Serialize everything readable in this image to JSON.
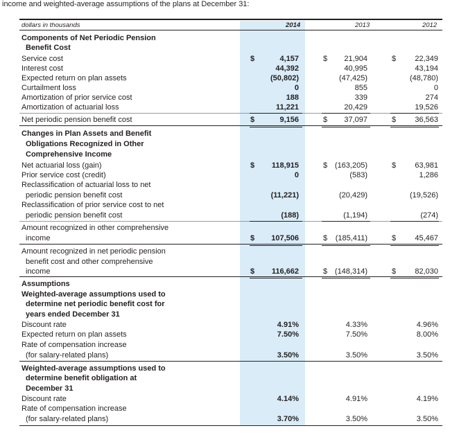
{
  "intro": "income and weighted-average assumptions of the plans at December 31:",
  "header": {
    "units": "dollars in thousands",
    "col2014": "2014",
    "col2013": "2013",
    "col2012": "2012"
  },
  "sections": {
    "npp_title_1": "Components of Net Periodic Pension",
    "npp_title_2": "Benefit Cost",
    "changes_title_1": "Changes in Plan Assets and Benefit",
    "changes_title_2": "Obligations Recognized in Other",
    "changes_title_3": "Comprehensive Income",
    "assumptions": "Assumptions",
    "wa1_1": "Weighted-average assumptions used to",
    "wa1_2": "determine net periodic benefit cost for",
    "wa1_3": "years ended December 31",
    "wa2_1": "Weighted-average assumptions used to",
    "wa2_2": "determine benefit obligation at",
    "wa2_3": "December 31"
  },
  "currency": "$",
  "rows": {
    "service_cost": {
      "label": "Service cost",
      "v2014": "4,157",
      "v2013": "21,904",
      "v2012": "22,349"
    },
    "interest_cost": {
      "label": "Interest cost",
      "v2014": "44,392",
      "v2013": "40,995",
      "v2012": "43,194"
    },
    "expected_return": {
      "label": "Expected return on plan assets",
      "v2014": "(50,802)",
      "v2013": "(47,425)",
      "v2012": "(48,780)"
    },
    "curtailment": {
      "label": "Curtailment loss",
      "v2014": "0",
      "v2013": "855",
      "v2012": "0"
    },
    "amort_prior": {
      "label": "Amortization of prior service cost",
      "v2014": "188",
      "v2013": "339",
      "v2012": "274"
    },
    "amort_actuarial": {
      "label": "Amortization of actuarial loss",
      "v2014": "11,221",
      "v2013": "20,429",
      "v2012": "19,526"
    },
    "net_periodic": {
      "label": "Net periodic pension benefit cost",
      "v2014": "9,156",
      "v2013": "37,097",
      "v2012": "36,563"
    },
    "net_actuarial": {
      "label": "Net actuarial loss (gain)",
      "v2014": "118,915",
      "v2013": "(163,205)",
      "v2012": "63,981"
    },
    "prior_service": {
      "label": "Prior service cost (credit)",
      "v2014": "0",
      "v2013": "(583)",
      "v2012": "1,286"
    },
    "reclass_actuarial": {
      "label1": "Reclassification of actuarial loss to net",
      "label2": "periodic pension benefit cost",
      "v2014": "(11,221)",
      "v2013": "(20,429)",
      "v2012": "(19,526)"
    },
    "reclass_prior": {
      "label1": "Reclassification of prior service cost to net",
      "label2": "periodic pension benefit cost",
      "v2014": "(188)",
      "v2013": "(1,194)",
      "v2012": "(274)"
    },
    "amount_oci": {
      "label1": "Amount recognized in other comprehensive",
      "label2": "income",
      "v2014": "107,506",
      "v2013": "(185,411)",
      "v2012": "45,467"
    },
    "amount_total": {
      "label1": "Amount recognized in net periodic pension",
      "label2": "benefit cost and other comprehensive",
      "label3": "income",
      "v2014": "116,662",
      "v2013": "(148,314)",
      "v2012": "82,030"
    },
    "discount_rate_1": {
      "label": "Discount rate",
      "v2014": "4.91%",
      "v2013": "4.33%",
      "v2012": "4.96%"
    },
    "expected_return_rate": {
      "label": "Expected return on plan assets",
      "v2014": "7.50%",
      "v2013": "7.50%",
      "v2012": "8.00%"
    },
    "comp_increase_1": {
      "label1": "Rate of compensation increase",
      "label2": "(for salary-related plans)",
      "v2014": "3.50%",
      "v2013": "3.50%",
      "v2012": "3.50%"
    },
    "discount_rate_2": {
      "label": "Discount rate",
      "v2014": "4.14%",
      "v2013": "4.91%",
      "v2012": "4.19%"
    },
    "comp_increase_2": {
      "label1": "Rate of compensation increase",
      "label2": "(for salary-related plans)",
      "v2014": "3.70%",
      "v2013": "3.50%",
      "v2012": "3.50%"
    }
  }
}
